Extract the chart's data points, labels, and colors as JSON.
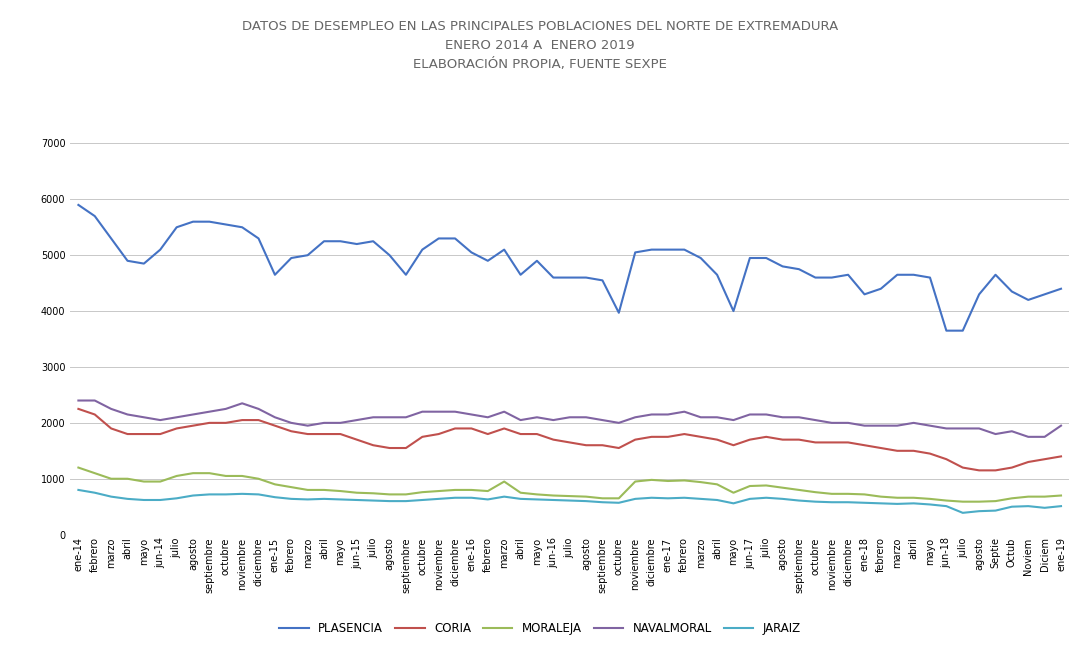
{
  "title_line1": "DATOS DE DESEMPLEO EN LAS PRINCIPALES POBLACIONES DEL NORTE DE EXTREMADURA",
  "title_line2": "ENERO 2014 A  ENERO 2019",
  "title_line3": "ELABORACIÓN PROPIA, FUENTE SEXPE",
  "series": {
    "PLASENCIA": [
      5900,
      5700,
      5300,
      4900,
      4850,
      5100,
      5500,
      5600,
      5600,
      5550,
      5500,
      5300,
      4650,
      4950,
      5000,
      5250,
      5250,
      5200,
      5250,
      5000,
      4650,
      5100,
      5300,
      5300,
      5050,
      4900,
      5100,
      4650,
      4900,
      4600,
      4600,
      4600,
      4550,
      3970,
      5050,
      5100,
      5100,
      5100,
      4950,
      4650,
      4000,
      4950,
      4950,
      4800,
      4750,
      4600,
      4600,
      4650,
      4300,
      4400,
      4650,
      4650,
      4600,
      3650,
      3650,
      4300,
      4650,
      4350,
      4200,
      4300,
      4400
    ],
    "CORIA": [
      2250,
      2150,
      1900,
      1800,
      1800,
      1800,
      1900,
      1950,
      2000,
      2000,
      2050,
      2050,
      1950,
      1850,
      1800,
      1800,
      1800,
      1700,
      1600,
      1550,
      1550,
      1750,
      1800,
      1900,
      1900,
      1800,
      1900,
      1800,
      1800,
      1700,
      1650,
      1600,
      1600,
      1550,
      1700,
      1750,
      1750,
      1800,
      1750,
      1700,
      1600,
      1700,
      1750,
      1700,
      1700,
      1650,
      1650,
      1650,
      1600,
      1550,
      1500,
      1500,
      1450,
      1350,
      1200,
      1150,
      1150,
      1200,
      1300,
      1350,
      1400
    ],
    "MORALEJA": [
      1200,
      1100,
      1000,
      1000,
      950,
      950,
      1050,
      1100,
      1100,
      1050,
      1050,
      1000,
      900,
      850,
      800,
      800,
      780,
      750,
      740,
      720,
      720,
      760,
      780,
      800,
      800,
      780,
      950,
      750,
      720,
      700,
      690,
      680,
      650,
      650,
      950,
      980,
      960,
      970,
      940,
      900,
      750,
      870,
      880,
      840,
      800,
      760,
      730,
      730,
      720,
      680,
      660,
      660,
      640,
      610,
      590,
      590,
      600,
      650,
      680,
      680,
      700
    ],
    "NAVALMORAL": [
      2400,
      2400,
      2250,
      2150,
      2100,
      2050,
      2100,
      2150,
      2200,
      2250,
      2350,
      2250,
      2100,
      2000,
      1950,
      2000,
      2000,
      2050,
      2100,
      2100,
      2100,
      2200,
      2200,
      2200,
      2150,
      2100,
      2200,
      2050,
      2100,
      2050,
      2100,
      2100,
      2050,
      2000,
      2100,
      2150,
      2150,
      2200,
      2100,
      2100,
      2050,
      2150,
      2150,
      2100,
      2100,
      2050,
      2000,
      2000,
      1950,
      1950,
      1950,
      2000,
      1950,
      1900,
      1900,
      1900,
      1800,
      1850,
      1750,
      1750,
      1950
    ],
    "JARAIZ": [
      800,
      750,
      680,
      640,
      620,
      620,
      650,
      700,
      720,
      720,
      730,
      720,
      670,
      640,
      630,
      640,
      630,
      620,
      610,
      600,
      600,
      620,
      640,
      660,
      660,
      630,
      680,
      640,
      630,
      620,
      610,
      600,
      580,
      570,
      640,
      660,
      650,
      660,
      640,
      620,
      560,
      640,
      660,
      640,
      610,
      590,
      580,
      580,
      570,
      560,
      550,
      560,
      540,
      510,
      390,
      420,
      430,
      500,
      510,
      480,
      510
    ]
  },
  "colors": {
    "PLASENCIA": "#4472C4",
    "CORIA": "#C0504D",
    "MORALEJA": "#9BBB59",
    "NAVALMORAL": "#8064A2",
    "JARAIZ": "#4BACC6"
  },
  "x_labels": [
    "ene-14",
    "febrero",
    "marzo",
    "abril",
    "mayo",
    "jun-14",
    "julio",
    "agosto",
    "septiembre",
    "octubre",
    "noviembre",
    "diciembre",
    "ene-15",
    "febrero",
    "marzo",
    "abril",
    "mayo",
    "jun-15",
    "julio",
    "agosto",
    "septiembre",
    "octubre",
    "noviembre",
    "diciembre",
    "ene-16",
    "febrero",
    "marzo",
    "abril",
    "mayo",
    "jun-16",
    "julio",
    "agosto",
    "septiembre",
    "octubre",
    "noviembre",
    "diciembre",
    "ene-17",
    "febrero",
    "marzo",
    "abril",
    "mayo",
    "jun-17",
    "julio",
    "agosto",
    "septiembre",
    "octubre",
    "noviembre",
    "diciembre",
    "ene-18",
    "febrero",
    "marzo",
    "abril",
    "mayo",
    "jun-18",
    "julio",
    "agosto",
    "Septie",
    "Octub",
    "Noviem",
    "Diciem",
    "ene-19"
  ],
  "ylim": [
    0,
    7000
  ],
  "yticks": [
    0,
    1000,
    2000,
    3000,
    4000,
    5000,
    6000,
    7000
  ],
  "background_color": "#FFFFFF",
  "grid_color": "#C8C8C8",
  "title_fontsize": 9.5,
  "legend_fontsize": 8.5,
  "tick_fontsize": 7
}
